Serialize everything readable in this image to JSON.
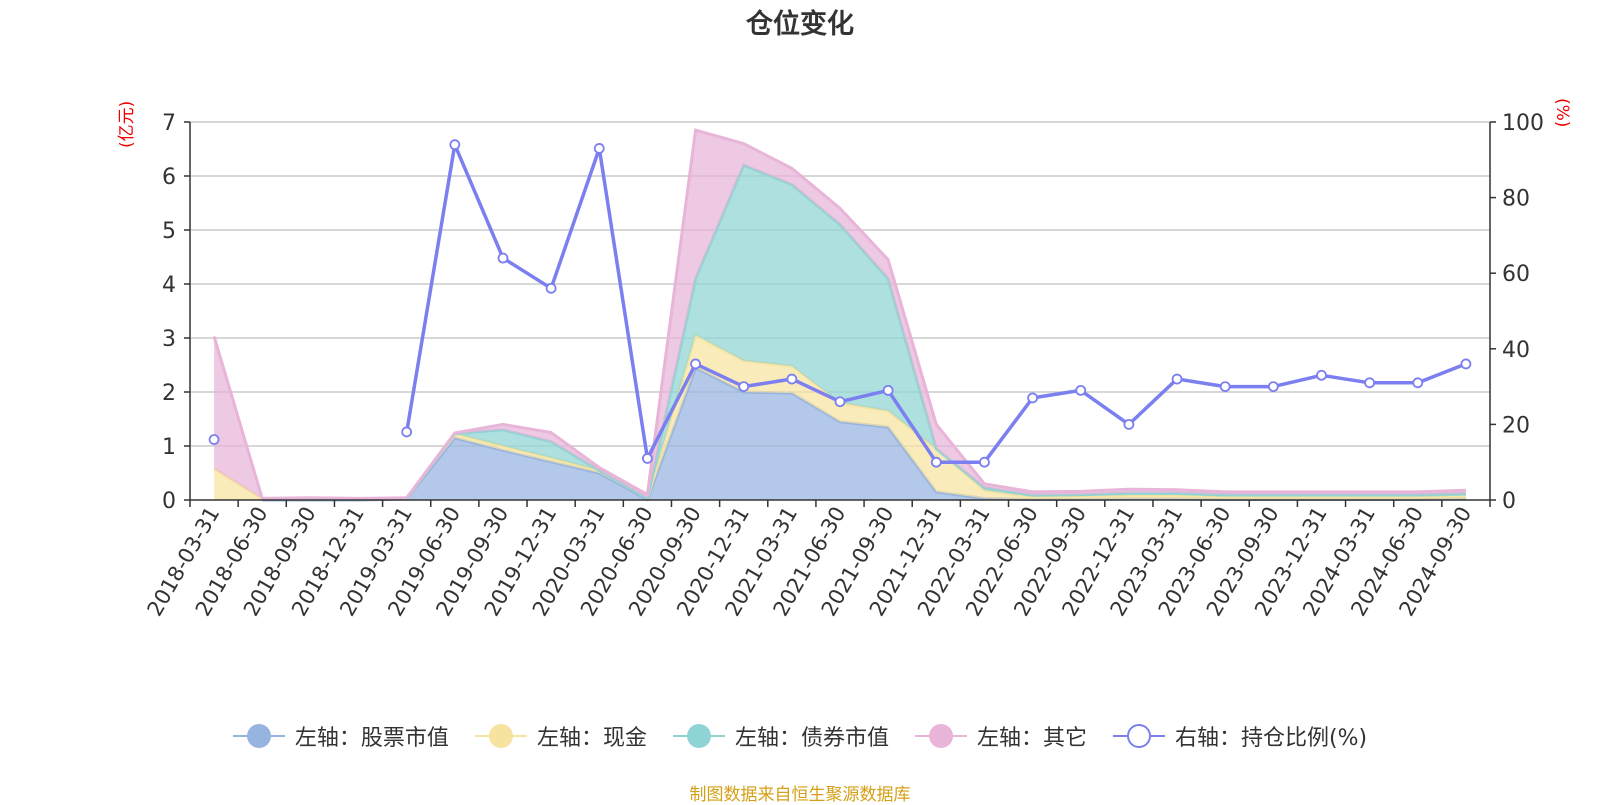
{
  "title": "仓位变化",
  "left_unit": "(亿元)",
  "right_unit": "(%)",
  "source": "制图数据来自恒生聚源数据库",
  "legend": [
    {
      "label": "左轴：股票市值",
      "color": "#97b3e0",
      "marker": "filled"
    },
    {
      "label": "左轴：现金",
      "color": "#f7e3a0",
      "marker": "filled"
    },
    {
      "label": "左轴：债券市值",
      "color": "#8fd4d4",
      "marker": "filled"
    },
    {
      "label": "左轴：其它",
      "color": "#e8b4d8",
      "marker": "filled"
    },
    {
      "label": "右轴：持仓比例(%)",
      "color": "#7b7ff0",
      "marker": "hollow"
    }
  ],
  "chart_data": {
    "type": "area",
    "categories": [
      "2018-03-31",
      "2018-06-30",
      "2018-09-30",
      "2018-12-31",
      "2019-03-31",
      "2019-06-30",
      "2019-09-30",
      "2019-12-31",
      "2020-03-31",
      "2020-06-30",
      "2020-09-30",
      "2020-12-31",
      "2021-03-31",
      "2021-06-30",
      "2021-09-30",
      "2021-12-31",
      "2022-03-31",
      "2022-06-30",
      "2022-09-30",
      "2022-12-31",
      "2023-03-31",
      "2023-06-30",
      "2023-09-30",
      "2023-12-31",
      "2024-03-31",
      "2024-06-30",
      "2024-09-30"
    ],
    "left_axis": {
      "ylim": [
        0,
        7
      ],
      "ticks": [
        0,
        1,
        2,
        3,
        4,
        5,
        6,
        7
      ]
    },
    "right_axis": {
      "ylim": [
        0,
        100
      ],
      "ticks": [
        0,
        20,
        40,
        60,
        80,
        100
      ]
    },
    "grid": true,
    "legend_position": "bottom",
    "series": [
      {
        "name": "左轴：股票市值",
        "axis": "left",
        "color": "#97b3e0",
        "values": [
          null,
          0,
          0,
          0,
          0.02,
          1.15,
          0.92,
          0.71,
          0.5,
          0.01,
          2.45,
          2.0,
          1.98,
          1.45,
          1.35,
          0.15,
          0.03,
          0.01,
          0.01,
          0.02,
          0.02,
          0.01,
          0.01,
          0.01,
          0.01,
          0.01,
          0.02
        ]
      },
      {
        "name": "左轴：现金",
        "axis": "left",
        "color": "#f7e3a0",
        "values": [
          0.58,
          0.02,
          0.01,
          0.01,
          0.01,
          0.08,
          0.08,
          0.07,
          0.05,
          0.02,
          0.6,
          0.58,
          0.5,
          0.35,
          0.3,
          0.8,
          0.15,
          0.05,
          0.06,
          0.07,
          0.07,
          0.05,
          0.05,
          0.05,
          0.05,
          0.05,
          0.06
        ]
      },
      {
        "name": "左轴：债券市值",
        "axis": "left",
        "color": "#8fd4d4",
        "values": [
          null,
          0,
          0,
          0,
          0,
          0,
          0.3,
          0.3,
          0,
          0,
          1.05,
          3.62,
          3.36,
          3.3,
          2.45,
          0,
          0.05,
          0.03,
          0.03,
          0.04,
          0.04,
          0.04,
          0.04,
          0.04,
          0.04,
          0.04,
          0.04
        ]
      },
      {
        "name": "左轴：其它",
        "axis": "left",
        "color": "#e8b4d8",
        "values": [
          2.45,
          0.01,
          0.03,
          0.02,
          0.01,
          0.01,
          0.1,
          0.17,
          0.05,
          0.07,
          2.75,
          0.4,
          0.3,
          0.3,
          0.35,
          0.45,
          0.07,
          0.06,
          0.06,
          0.07,
          0.06,
          0.05,
          0.05,
          0.05,
          0.05,
          0.05,
          0.06
        ]
      },
      {
        "name": "右轴：持仓比例(%)",
        "axis": "right",
        "color": "#7b7ff0",
        "values": [
          16,
          null,
          null,
          null,
          18,
          94,
          64,
          56,
          93,
          11,
          36,
          30,
          32,
          26,
          29,
          10,
          10,
          27,
          29,
          20,
          32,
          30,
          30,
          33,
          31,
          31,
          36
        ]
      }
    ]
  }
}
